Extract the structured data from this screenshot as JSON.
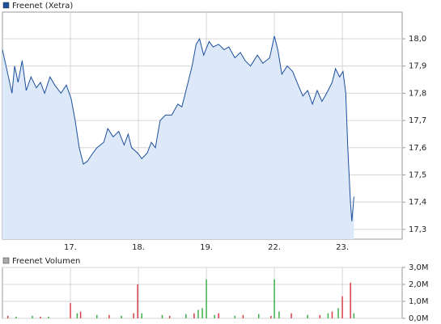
{
  "chart_data": [
    {
      "type": "line",
      "series": [
        {
          "name": "Freenet (Xetra)",
          "color": "#1c4f9c",
          "fill": "#dde8f8",
          "x": [
            0,
            0.08,
            0.14,
            0.18,
            0.23,
            0.29,
            0.35,
            0.42,
            0.5,
            0.56,
            0.62,
            0.7,
            0.77,
            0.86,
            0.94,
            1.01,
            1.07,
            1.13,
            1.19,
            1.25,
            1.33,
            1.39,
            1.49,
            1.55,
            1.63,
            1.71,
            1.79,
            1.85,
            1.9,
            1.99,
            2.05,
            2.13,
            2.19,
            2.25,
            2.32,
            2.4,
            2.49,
            2.58,
            2.64,
            2.73,
            2.79,
            2.85,
            2.9,
            2.96,
            3.04,
            3.1,
            3.18,
            3.26,
            3.33,
            3.42,
            3.5,
            3.57,
            3.65,
            3.75,
            3.83,
            3.93,
            4.0,
            4.05,
            4.11,
            4.19,
            4.27,
            4.35,
            4.42,
            4.49,
            4.56,
            4.63,
            4.7,
            4.77,
            4.85,
            4.9,
            4.96,
            5.01,
            5.05,
            5.08,
            5.12,
            5.14,
            5.17
          ],
          "values": [
            17.96,
            17.87,
            17.8,
            17.9,
            17.84,
            17.92,
            17.81,
            17.86,
            17.82,
            17.84,
            17.8,
            17.86,
            17.83,
            17.8,
            17.83,
            17.78,
            17.7,
            17.6,
            17.54,
            17.55,
            17.58,
            17.6,
            17.62,
            17.67,
            17.64,
            17.66,
            17.61,
            17.65,
            17.6,
            17.58,
            17.56,
            17.58,
            17.62,
            17.6,
            17.7,
            17.72,
            17.72,
            17.76,
            17.75,
            17.84,
            17.9,
            17.98,
            18.0,
            17.94,
            17.99,
            17.97,
            17.98,
            17.96,
            17.97,
            17.93,
            17.95,
            17.92,
            17.9,
            17.94,
            17.91,
            17.93,
            18.01,
            17.96,
            17.87,
            17.9,
            17.88,
            17.83,
            17.79,
            17.81,
            17.76,
            17.81,
            17.77,
            17.8,
            17.84,
            17.89,
            17.86,
            17.88,
            17.8,
            17.6,
            17.4,
            17.33,
            17.42
          ]
        }
      ],
      "xlim": [
        0,
        5.88
      ],
      "xticks": [
        {
          "value": 1,
          "label": "17."
        },
        {
          "value": 2,
          "label": "18."
        },
        {
          "value": 3,
          "label": "19."
        },
        {
          "value": 4,
          "label": "22."
        },
        {
          "value": 5,
          "label": "23."
        }
      ],
      "ylim": [
        17.264,
        18.098
      ],
      "yticks": [
        {
          "value": 17.3,
          "label": "17,3"
        },
        {
          "value": 17.4,
          "label": "17,4"
        },
        {
          "value": 17.5,
          "label": "17,5"
        },
        {
          "value": 17.6,
          "label": "17,6"
        },
        {
          "value": 17.7,
          "label": "17,7"
        },
        {
          "value": 17.8,
          "label": "17,8"
        },
        {
          "value": 17.9,
          "label": "17,9"
        },
        {
          "value": 18.0,
          "label": "18,0"
        }
      ],
      "grid": true
    },
    {
      "type": "bar",
      "title": "Freenet Volumen",
      "series": [
        {
          "color": "#3cb04a",
          "x": [
            0.2,
            0.44,
            0.68,
            1.1,
            1.39,
            1.75,
            2.05,
            2.35,
            2.7,
            2.88,
            2.94,
            3.0,
            3.12,
            3.42,
            3.77,
            4.0,
            4.07,
            4.49,
            4.79,
            4.94,
            5.17
          ],
          "values": [
            100000,
            150000,
            100000,
            300000,
            200000,
            150000,
            300000,
            200000,
            250000,
            500000,
            600000,
            2300000,
            200000,
            150000,
            250000,
            2300000,
            400000,
            200000,
            300000,
            600000,
            300000
          ]
        },
        {
          "color": "#d9404a",
          "x": [
            0.08,
            0.56,
            1.0,
            1.15,
            1.57,
            1.93,
            1.99,
            2.46,
            2.82,
            3.18,
            3.54,
            3.95,
            4.25,
            4.67,
            4.85,
            5.0,
            5.12
          ],
          "values": [
            150000,
            100000,
            900000,
            400000,
            200000,
            300000,
            2000000,
            150000,
            300000,
            300000,
            200000,
            150000,
            300000,
            200000,
            400000,
            1300000,
            2100000
          ]
        }
      ],
      "xlim": [
        0,
        5.88
      ],
      "ylim": [
        0,
        3000000
      ],
      "yticks": [
        {
          "value": 0,
          "label": "0,0M"
        },
        {
          "value": 1000000,
          "label": "1,0M"
        },
        {
          "value": 2000000,
          "label": "2,0M"
        },
        {
          "value": 3000000,
          "label": "3,0M"
        }
      ],
      "grid": true
    }
  ]
}
